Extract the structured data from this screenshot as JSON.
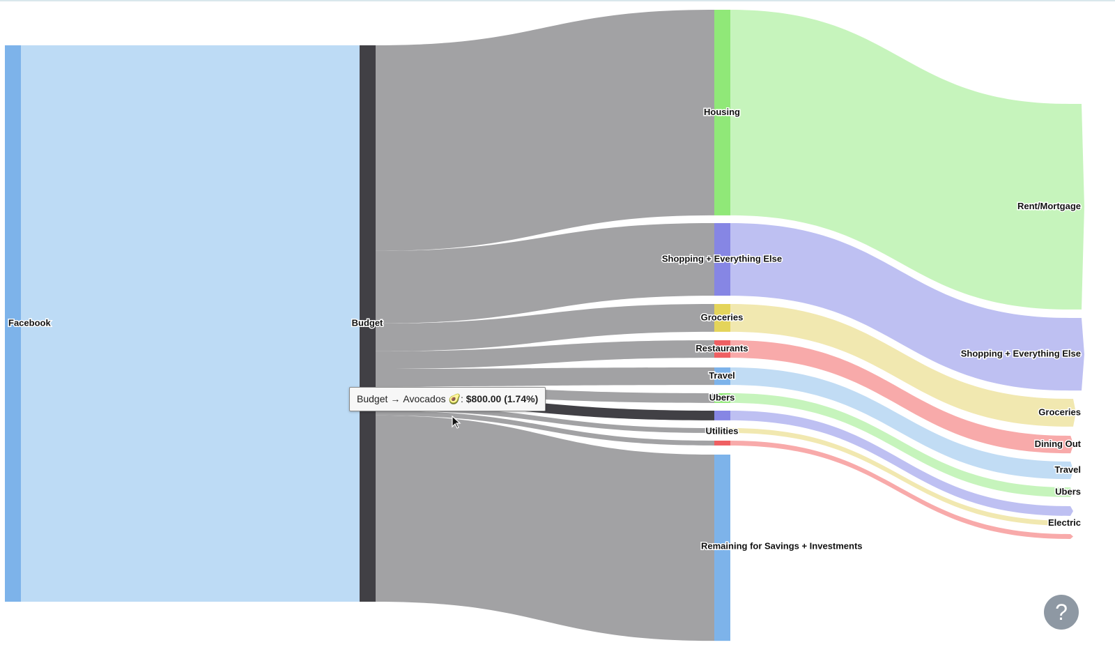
{
  "chart_data": {
    "type": "sankey",
    "nodes": [
      {
        "id": "facebook",
        "name": "Facebook",
        "color": "#7db3ea"
      },
      {
        "id": "budget",
        "name": "Budget",
        "color": "#414045"
      },
      {
        "id": "housing",
        "name": "Housing",
        "color": "#90e878"
      },
      {
        "id": "shopping",
        "name": "Shopping + Everything Else",
        "color": "#8686e4"
      },
      {
        "id": "groceries",
        "name": "Groceries",
        "color": "#e4d45a"
      },
      {
        "id": "restaurants",
        "name": "Restaurants",
        "color": "#ef5f62"
      },
      {
        "id": "travel",
        "name": "Travel",
        "color": "#7db3ea"
      },
      {
        "id": "ubers",
        "name": "Ubers",
        "color": "#90e878"
      },
      {
        "id": "avocados",
        "name": "",
        "color": "#8686e4"
      },
      {
        "id": "utilities",
        "name": "Utilities",
        "color": "#e4d45a"
      },
      {
        "id": "misc",
        "name": "",
        "color": "#ef5f62"
      },
      {
        "id": "savings",
        "name": "Remaining for Savings + Investments",
        "color": "#7db3ea"
      },
      {
        "id": "rent",
        "name": "Rent/Mortgage",
        "color": "#c6f4bc"
      },
      {
        "id": "shopping_out",
        "name": "Shopping + Everything Else",
        "color": "#bec0f2"
      },
      {
        "id": "groceries_out",
        "name": "Groceries",
        "color": "#f1e8b0"
      },
      {
        "id": "dining",
        "name": "Dining Out",
        "color": "#f8aaaa"
      },
      {
        "id": "travel_out",
        "name": "Travel",
        "color": "#c1dcf4"
      },
      {
        "id": "ubers_out",
        "name": "Ubers",
        "color": "#c6f4bc"
      },
      {
        "id": "avocados_out",
        "name": "",
        "color": "#bec0f2"
      },
      {
        "id": "electric",
        "name": "Electric",
        "color": "#f1e8b0"
      },
      {
        "id": "misc_out",
        "name": "",
        "color": "#f8aaaa"
      }
    ],
    "links": [
      {
        "source": "facebook",
        "target": "budget",
        "value": 46000,
        "color": "#bddbf5"
      },
      {
        "source": "budget",
        "target": "housing",
        "value": 17000,
        "color": "#a2a2a4"
      },
      {
        "source": "budget",
        "target": "shopping",
        "value": 6000,
        "color": "#a2a2a4"
      },
      {
        "source": "budget",
        "target": "groceries",
        "value": 2300,
        "color": "#a2a2a4"
      },
      {
        "source": "budget",
        "target": "restaurants",
        "value": 1450,
        "color": "#a2a2a4"
      },
      {
        "source": "budget",
        "target": "travel",
        "value": 1450,
        "color": "#a2a2a4"
      },
      {
        "source": "budget",
        "target": "ubers",
        "value": 800,
        "color": "#a2a2a4"
      },
      {
        "source": "budget",
        "target": "avocados",
        "value": 800,
        "color": "#414045"
      },
      {
        "source": "budget",
        "target": "utilities",
        "value": 400,
        "color": "#a2a2a4"
      },
      {
        "source": "budget",
        "target": "misc",
        "value": 400,
        "color": "#a2a2a4"
      },
      {
        "source": "budget",
        "target": "savings",
        "value": 15400,
        "color": "#a2a2a4"
      },
      {
        "source": "housing",
        "target": "rent",
        "value": 17000,
        "color": "#c6f4bc"
      },
      {
        "source": "shopping",
        "target": "shopping_out",
        "value": 6000,
        "color": "#bec0f2"
      },
      {
        "source": "groceries",
        "target": "groceries_out",
        "value": 2300,
        "color": "#f1e8b0"
      },
      {
        "source": "restaurants",
        "target": "dining",
        "value": 1450,
        "color": "#f8aaaa"
      },
      {
        "source": "travel",
        "target": "travel_out",
        "value": 1450,
        "color": "#c1dcf4"
      },
      {
        "source": "ubers",
        "target": "ubers_out",
        "value": 800,
        "color": "#c6f4bc"
      },
      {
        "source": "avocados",
        "target": "avocados_out",
        "value": 800,
        "color": "#bec0f2"
      },
      {
        "source": "utilities",
        "target": "electric",
        "value": 400,
        "color": "#f1e8b0"
      },
      {
        "source": "misc",
        "target": "misc_out",
        "value": 400,
        "color": "#f8aaaa"
      }
    ]
  },
  "tooltip": {
    "source": "Budget",
    "arrow": "→",
    "target": "Avocados 🥑",
    "value": "$800.00",
    "percent": "(1.74%)"
  },
  "help_button": {
    "label": "?"
  }
}
